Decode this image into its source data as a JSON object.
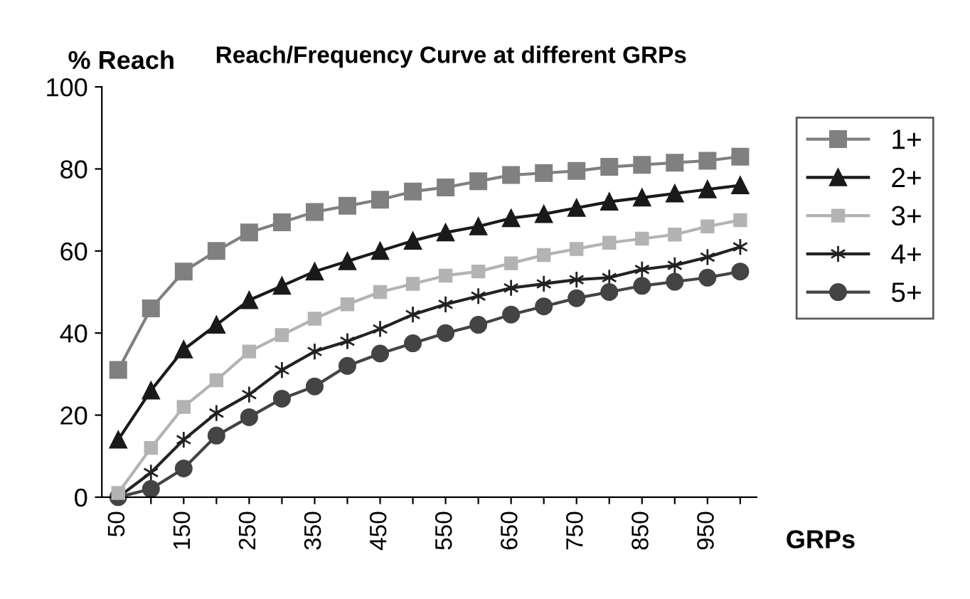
{
  "chart_data": {
    "type": "line",
    "title": "Reach/Frequency Curve at different GRPs",
    "ylabel": "% Reach",
    "xlabel": "GRPs",
    "categories": [
      "50",
      null,
      "150",
      null,
      "250",
      null,
      "350",
      null,
      "450",
      null,
      "550",
      null,
      "650",
      null,
      "750",
      null,
      "850",
      null,
      "950",
      null
    ],
    "ylim": [
      0,
      100
    ],
    "yticks": [
      0,
      20,
      40,
      60,
      80,
      100
    ],
    "grid": false,
    "legend": "right",
    "series": [
      {
        "name": "1+",
        "color": "#808080",
        "marker": "square",
        "values": [
          31,
          46,
          55,
          60,
          64.5,
          67,
          69.5,
          71,
          72.5,
          74.5,
          75.5,
          77,
          78.5,
          79,
          79.5,
          80.5,
          81,
          81.5,
          82,
          83
        ]
      },
      {
        "name": "2+",
        "color": "#1a1a1a",
        "marker": "triangle",
        "values": [
          14,
          26,
          36,
          42,
          48,
          51.5,
          55,
          57.5,
          60,
          62.5,
          64.5,
          66,
          68,
          69,
          70.5,
          72,
          73,
          74,
          75,
          76
        ]
      },
      {
        "name": "3+",
        "color": "#b3b3b3",
        "marker": "square",
        "values": [
          1,
          12,
          22,
          28.5,
          35.5,
          39.5,
          43.5,
          47,
          50,
          52,
          54,
          55,
          57,
          59,
          60.5,
          62,
          63,
          64,
          66,
          67.5
        ]
      },
      {
        "name": "4+",
        "color": "#222222",
        "marker": "cross",
        "values": [
          0,
          6,
          14,
          20.5,
          25,
          31,
          35.5,
          38,
          41,
          44.5,
          47,
          49,
          51,
          52,
          53,
          53.5,
          55.5,
          56.5,
          58.5,
          61
        ]
      },
      {
        "name": "5+",
        "color": "#444444",
        "marker": "circle",
        "values": [
          0,
          2,
          7,
          15,
          19.5,
          24,
          27,
          32,
          35,
          37.5,
          40,
          42,
          44.5,
          46.5,
          48.5,
          50,
          51.5,
          52.5,
          53.5,
          55
        ]
      }
    ]
  }
}
